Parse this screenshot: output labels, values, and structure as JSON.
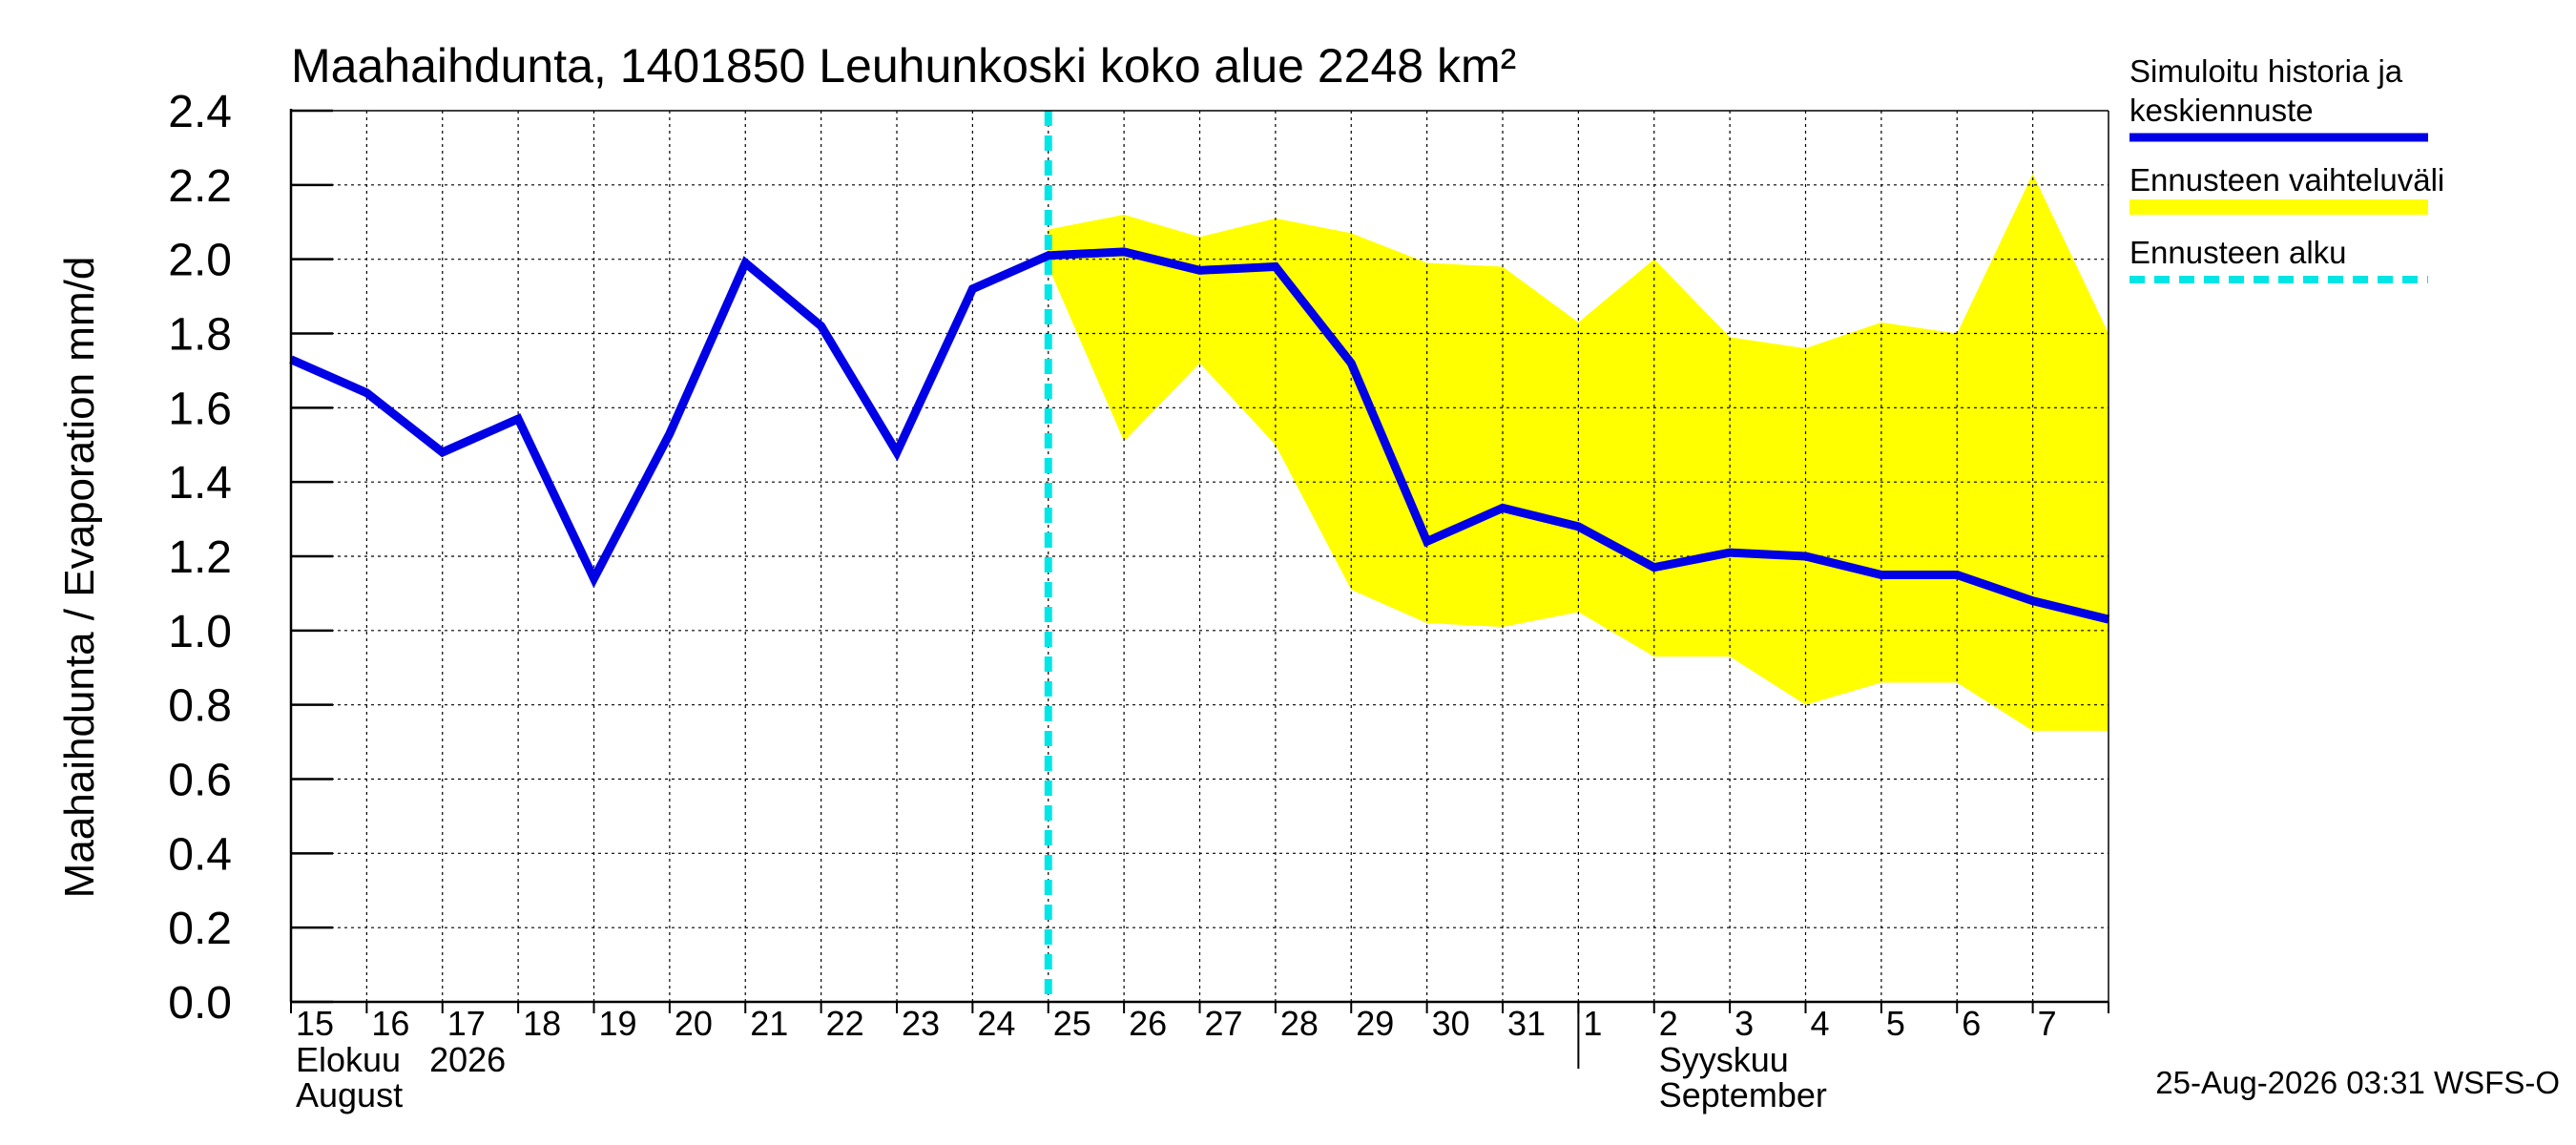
{
  "chart_data": {
    "type": "line",
    "title": "Maahaihdunta, 1401850 Leuhunkoski koko alue 2248 km²",
    "ylabel": "Maahaihdunta / Evaporation   mm/d",
    "ylim": [
      0.0,
      2.4
    ],
    "yticks": [
      "0.0",
      "0.2",
      "0.4",
      "0.6",
      "0.8",
      "1.0",
      "1.2",
      "1.4",
      "1.6",
      "1.8",
      "2.0",
      "2.2",
      "2.4"
    ],
    "x_start": "2026-08-15",
    "x_end": "2026-09-08",
    "day_labels": [
      "15",
      "16",
      "17",
      "18",
      "19",
      "20",
      "21",
      "22",
      "23",
      "24",
      "25",
      "26",
      "27",
      "28",
      "29",
      "30",
      "31",
      "1",
      "2",
      "3",
      "4",
      "5",
      "6",
      "7"
    ],
    "month_labels": [
      {
        "line1": "Elokuu   2026",
        "line2": "August",
        "date": "2026-08-15"
      },
      {
        "line1": "Syyskuu",
        "line2": "September",
        "date": "2026-09-02"
      }
    ],
    "forecast_start": "2026-08-25",
    "series": [
      {
        "name": "Simuloitu historia ja keskiennuste",
        "color": "#0000e6",
        "points": [
          [
            "2026-08-15",
            1.73
          ],
          [
            "2026-08-16",
            1.64
          ],
          [
            "2026-08-17",
            1.48
          ],
          [
            "2026-08-18",
            1.57
          ],
          [
            "2026-08-19",
            1.14
          ],
          [
            "2026-08-20",
            1.53
          ],
          [
            "2026-08-21",
            1.99
          ],
          [
            "2026-08-22",
            1.82
          ],
          [
            "2026-08-23",
            1.48
          ],
          [
            "2026-08-24",
            1.92
          ],
          [
            "2026-08-25",
            2.01
          ],
          [
            "2026-08-26",
            2.02
          ],
          [
            "2026-08-27",
            1.97
          ],
          [
            "2026-08-28",
            1.98
          ],
          [
            "2026-08-29",
            1.72
          ],
          [
            "2026-08-30",
            1.24
          ],
          [
            "2026-08-31",
            1.33
          ],
          [
            "2026-09-01",
            1.28
          ],
          [
            "2026-09-02",
            1.17
          ],
          [
            "2026-09-03",
            1.21
          ],
          [
            "2026-09-04",
            1.2
          ],
          [
            "2026-09-05",
            1.15
          ],
          [
            "2026-09-06",
            1.15
          ],
          [
            "2026-09-07",
            1.08
          ],
          [
            "2026-09-08",
            1.03
          ]
        ]
      },
      {
        "name": "Ennusteen vaihteluväli",
        "color": "#ffff00",
        "points": [
          [
            "2026-08-25",
            1.98,
            2.08
          ],
          [
            "2026-08-26",
            1.51,
            2.12
          ],
          [
            "2026-08-27",
            1.72,
            2.06
          ],
          [
            "2026-08-28",
            1.5,
            2.11
          ],
          [
            "2026-08-29",
            1.11,
            2.07
          ],
          [
            "2026-08-30",
            1.02,
            1.99
          ],
          [
            "2026-08-31",
            1.01,
            1.98
          ],
          [
            "2026-09-01",
            1.05,
            1.83
          ],
          [
            "2026-09-02",
            0.93,
            2.0
          ],
          [
            "2026-09-03",
            0.93,
            1.79
          ],
          [
            "2026-09-04",
            0.8,
            1.76
          ],
          [
            "2026-09-05",
            0.86,
            1.83
          ],
          [
            "2026-09-06",
            0.86,
            1.8
          ],
          [
            "2026-09-07",
            0.73,
            2.23
          ],
          [
            "2026-09-08",
            0.73,
            1.8
          ]
        ]
      },
      {
        "name": "Ennusteen alku",
        "color": "#00e5e5"
      }
    ],
    "legend": [
      "Simuloitu historia ja keskiennuste",
      "Ennusteen vaihteluväli",
      "Ennusteen alku"
    ],
    "legend_position": "right",
    "grid": true
  },
  "footer": {
    "timestamp": "25-Aug-2026 03:31 WSFS-O"
  }
}
